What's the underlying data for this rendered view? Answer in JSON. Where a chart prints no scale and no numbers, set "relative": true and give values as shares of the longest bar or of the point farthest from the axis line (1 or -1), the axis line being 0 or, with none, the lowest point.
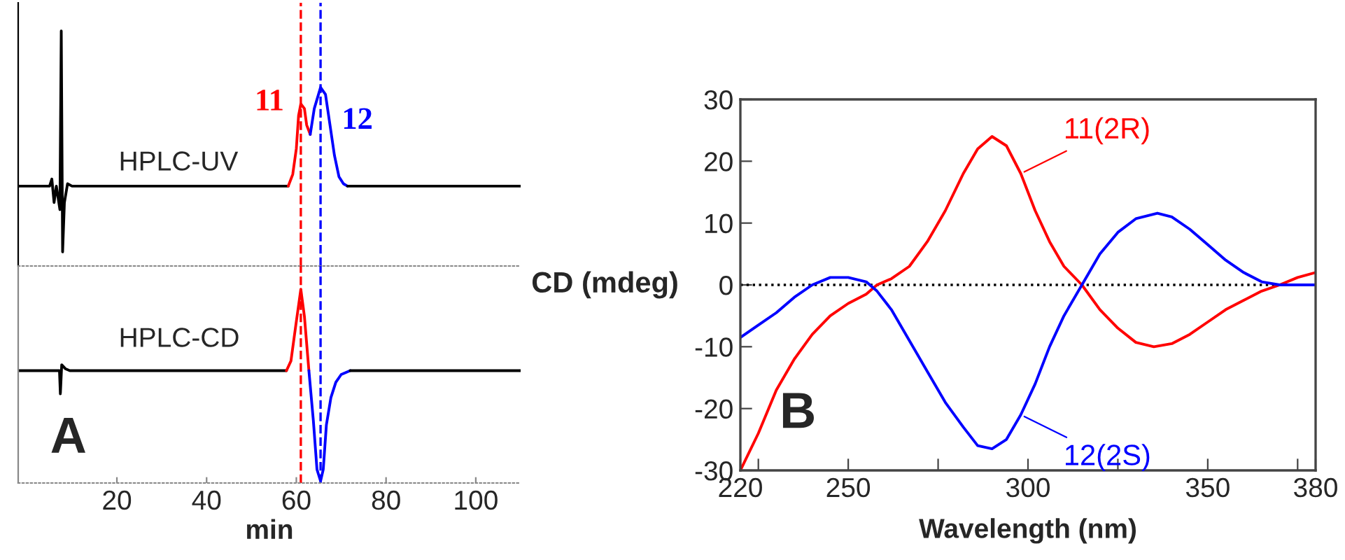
{
  "chart_data": [
    {
      "type": "line",
      "title": "HPLC-UV",
      "relative": true,
      "xlim": [
        -2,
        110
      ],
      "xticks": [
        20,
        40,
        60,
        80,
        100
      ],
      "tick_labels": false,
      "grid": false,
      "series": [
        {
          "color": "#000000",
          "x": [
            -2,
            5,
            5.5,
            6,
            6.5,
            7.3,
            7.6,
            7.9,
            8.3,
            9,
            10,
            58.2
          ],
          "values": [
            0.34,
            0.34,
            0.37,
            0.27,
            0.34,
            0.24,
            1.0,
            0.06,
            0.27,
            0.35,
            0.34,
            0.34
          ]
        },
        {
          "color": "#ff0000",
          "x": [
            58.2,
            59.2,
            60,
            60.5,
            61.0,
            61.8,
            62.3,
            63.1
          ],
          "values": [
            0.34,
            0.39,
            0.5,
            0.64,
            0.69,
            0.67,
            0.6,
            0.56
          ]
        },
        {
          "color": "#0000ff",
          "x": [
            63.1,
            64,
            65.4,
            66.5,
            67.5,
            68.5,
            69.5,
            70.5,
            71.4
          ],
          "values": [
            0.56,
            0.67,
            0.76,
            0.73,
            0.6,
            0.47,
            0.38,
            0.35,
            0.34
          ]
        },
        {
          "color": "#000000",
          "x": [
            71.4,
            110
          ],
          "values": [
            0.34,
            0.34
          ]
        }
      ],
      "ref_lines": [
        {
          "axis": "x",
          "value": 61.0,
          "color": "#ff0000",
          "line_style": "dashed"
        },
        {
          "axis": "x",
          "value": 65.4,
          "color": "#0000ff",
          "line_style": "dashed"
        }
      ],
      "annotations": [
        "11",
        "12"
      ]
    },
    {
      "type": "line",
      "title": "HPLC-CD",
      "relative": true,
      "xlim": [
        -2,
        110
      ],
      "xticks": [
        20,
        40,
        60,
        80,
        100
      ],
      "tick_labels": "x",
      "xlabel": "min",
      "grid": false,
      "series": [
        {
          "color": "#000000",
          "x": [
            -2,
            7.2,
            7.4,
            7.7,
            8.5,
            9.5,
            57.8
          ],
          "values": [
            0.58,
            0.58,
            0.46,
            0.61,
            0.59,
            0.58,
            0.58
          ]
        },
        {
          "color": "#ff0000",
          "x": [
            57.8,
            58.8,
            59.8,
            61.0,
            61.8,
            62.8
          ],
          "values": [
            0.58,
            0.63,
            0.8,
            1.0,
            0.86,
            0.58
          ]
        },
        {
          "color": "#0000ff",
          "x": [
            62.8,
            63.8,
            64.6,
            65.4,
            66.0,
            66.7,
            67.7,
            68.8,
            70,
            72
          ],
          "values": [
            0.58,
            0.32,
            0.07,
            0.01,
            0.07,
            0.3,
            0.44,
            0.52,
            0.56,
            0.58
          ]
        },
        {
          "color": "#000000",
          "x": [
            72,
            110
          ],
          "values": [
            0.58,
            0.58
          ]
        }
      ],
      "ref_lines": [
        {
          "axis": "x",
          "value": 61.0,
          "color": "#ff0000",
          "line_style": "dashed"
        },
        {
          "axis": "x",
          "value": 65.4,
          "color": "#0000ff",
          "line_style": "dashed"
        }
      ],
      "annotations": [
        "A"
      ]
    },
    {
      "type": "line",
      "xlabel": "Wavelength (nm)",
      "ylabel": "CD (mdeg)",
      "xlim": [
        220,
        380
      ],
      "ylim": [
        -30,
        30
      ],
      "xticks": [
        220,
        {
          "value": 225,
          "label": null
        },
        250,
        {
          "value": 275,
          "label": null
        },
        300,
        {
          "value": 325,
          "label": null
        },
        350,
        {
          "value": 375,
          "label": null
        },
        380
      ],
      "yticks": [
        -30,
        -20,
        -10,
        0,
        10,
        20,
        30
      ],
      "grid": false,
      "series": [
        {
          "name": "11(2R)",
          "color": "#ff0000",
          "x": [
            220,
            225,
            230,
            235,
            240,
            245,
            250,
            255,
            258,
            262,
            267,
            272,
            277,
            282,
            286,
            290,
            294,
            298,
            302,
            306,
            310,
            315,
            320,
            325,
            330,
            335,
            340,
            345,
            350,
            355,
            360,
            365,
            370,
            375,
            380
          ],
          "values": [
            -30,
            -24,
            -17,
            -12,
            -8,
            -5,
            -3,
            -1.5,
            0,
            1,
            3,
            7,
            12,
            18,
            22,
            24,
            22.5,
            18,
            12,
            7,
            3,
            0,
            -4,
            -7,
            -9.3,
            -10,
            -9.5,
            -8,
            -6,
            -4,
            -2.5,
            -1,
            0,
            1.2,
            2
          ]
        },
        {
          "name": "12(2S)",
          "color": "#0000ff",
          "x": [
            220,
            225,
            230,
            235,
            240,
            245,
            250,
            255,
            258,
            262,
            267,
            272,
            277,
            282,
            286,
            290,
            294,
            298,
            302,
            306,
            310,
            315,
            320,
            325,
            330,
            336,
            340,
            345,
            350,
            355,
            360,
            365,
            370,
            375,
            380
          ],
          "values": [
            -8.5,
            -6.5,
            -4.5,
            -2,
            0,
            1.2,
            1.2,
            0.5,
            -1,
            -4,
            -9,
            -14,
            -19,
            -23,
            -26,
            -26.5,
            -25,
            -21,
            -16,
            -10,
            -5,
            0,
            5,
            8.5,
            10.7,
            11.6,
            11,
            9,
            6.5,
            4,
            2,
            0.5,
            0,
            0,
            0
          ]
        }
      ],
      "ref_lines": [
        {
          "axis": "y",
          "value": 0,
          "color": "#000000",
          "line_style": "dotted"
        }
      ],
      "annotations": [
        "B"
      ]
    }
  ]
}
